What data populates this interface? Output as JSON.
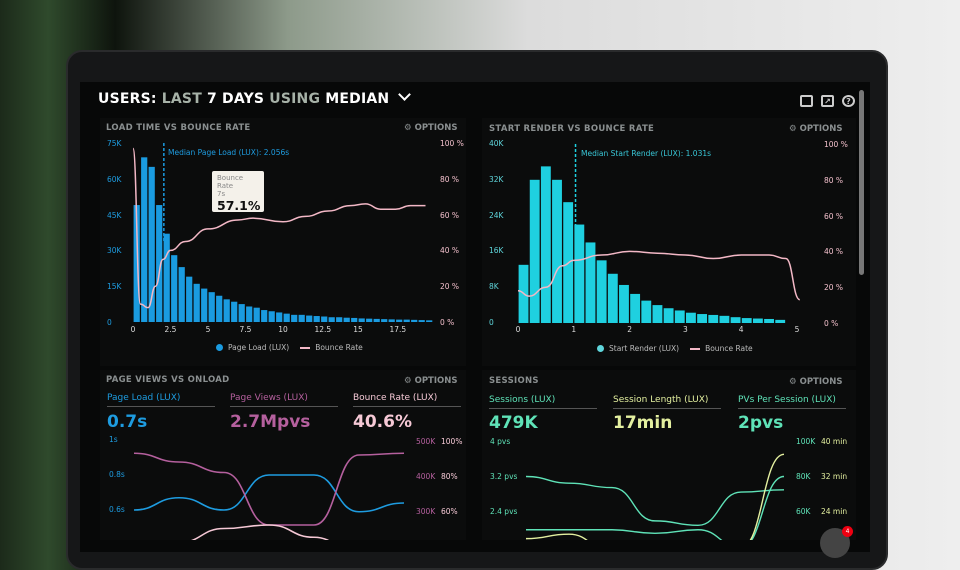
{
  "header": {
    "title_a": "USERS:",
    "title_b": "LAST",
    "title_c": "7 DAYS",
    "title_d": "USING",
    "title_e": "MEDIAN",
    "icons": [
      "monitor-icon",
      "share-icon",
      "help-icon"
    ]
  },
  "options_label": "OPTIONS",
  "panels": {
    "load": {
      "title": "LOAD TIME VS BOUNCE RATE",
      "median": "Median Page Load (LUX): 2.056s",
      "legend_bars": "Page Load (LUX)",
      "legend_line": "Bounce Rate",
      "tooltip": {
        "label": "Bounce Rate",
        "x": "7s",
        "value": "57.1%"
      },
      "yticks": [
        "75K",
        "60K",
        "45K",
        "30K",
        "15K",
        "0"
      ],
      "y2ticks": [
        "100 %",
        "80 %",
        "60 %",
        "40 %",
        "20 %",
        "0 %"
      ],
      "xticks": [
        "0",
        "2.5",
        "5",
        "7.5",
        "10",
        "12.5",
        "15",
        "17.5"
      ]
    },
    "render": {
      "title": "START RENDER VS BOUNCE RATE",
      "median": "Median Start Render (LUX): 1.031s",
      "legend_bars": "Start Render (LUX)",
      "legend_line": "Bounce Rate",
      "yticks": [
        "40K",
        "32K",
        "24K",
        "16K",
        "8K",
        "0"
      ],
      "y2ticks": [
        "100 %",
        "80 %",
        "60 %",
        "40 %",
        "20 %",
        "0 %"
      ],
      "xticks": [
        "0",
        "1",
        "2",
        "3",
        "4",
        "5"
      ]
    },
    "views": {
      "title": "PAGE VIEWS VS ONLOAD",
      "kpis": [
        {
          "label": "Page Load (LUX)",
          "value": "0.7s",
          "color": "#1e9ce0"
        },
        {
          "label": "Page Views (LUX)",
          "value": "2.7Mpvs",
          "color": "#b5609e"
        },
        {
          "label": "Bounce Rate (LUX)",
          "value": "40.6%",
          "color": "#f6c9d6"
        }
      ],
      "yticks": [
        "1s",
        "0.8s",
        "0.6s"
      ],
      "y2ticks": [
        "500K",
        "400K",
        "300K"
      ],
      "y3ticks": [
        "100%",
        "80%",
        "60%"
      ]
    },
    "sessions": {
      "title": "SESSIONS",
      "kpis": [
        {
          "label": "Sessions (LUX)",
          "value": "479K",
          "color": "#5fe3b8"
        },
        {
          "label": "Session Length (LUX)",
          "value": "17min",
          "color": "#e4f0a0"
        },
        {
          "label": "PVs Per Session (LUX)",
          "value": "2pvs",
          "color": "#5fe3b8"
        }
      ],
      "yticks": [
        "4 pvs",
        "3.2 pvs",
        "2.4 pvs"
      ],
      "y2ticks": [
        "100K",
        "80K",
        "60K"
      ],
      "y3ticks": [
        "40 min",
        "32 min",
        "24 min"
      ]
    }
  },
  "notification_count": "4",
  "chart_data": [
    {
      "type": "bar",
      "title": "LOAD TIME VS BOUNCE RATE",
      "xlabel": "",
      "ylabel": "",
      "xlim": [
        0,
        20
      ],
      "ylim": [
        0,
        75000
      ],
      "y2lim": [
        0,
        100
      ],
      "legend": "bottom",
      "series": [
        {
          "name": "Page Load (LUX)",
          "type": "bar",
          "bin_width": 0.5,
          "color": "#1a9be0",
          "values": [
            49,
            69,
            65,
            49,
            37,
            28,
            23,
            19,
            16,
            14,
            12.5,
            11,
            9.5,
            8.5,
            7.5,
            6.5,
            6,
            5,
            4.5,
            4,
            3.5,
            3,
            3,
            2.7,
            2.5,
            2.3,
            2,
            2,
            1.8,
            1.7,
            1.5,
            1.4,
            1.3,
            1.2,
            1.1,
            1,
            1,
            0.9,
            0.8,
            0.7
          ]
        },
        {
          "name": "Bounce Rate",
          "type": "line",
          "color": "#f3b8c6",
          "x": [
            0,
            0.5,
            1,
            1.5,
            2,
            2.5,
            3.5,
            5,
            7,
            8,
            10,
            11.5,
            13,
            14.5,
            15.5,
            16.5,
            17.5,
            18.5,
            19.5
          ],
          "y": [
            97,
            10,
            8,
            20,
            35,
            40,
            45,
            52,
            57,
            58,
            56,
            59,
            62,
            65,
            66,
            63,
            63,
            65,
            65
          ]
        }
      ],
      "median_x": 2.056,
      "value_unit": "K"
    },
    {
      "type": "bar",
      "title": "START RENDER VS BOUNCE RATE",
      "xlim": [
        0,
        5
      ],
      "ylim": [
        0,
        40000
      ],
      "y2lim": [
        0,
        100
      ],
      "legend": "bottom",
      "series": [
        {
          "name": "Start Render (LUX)",
          "type": "bar",
          "bin_width": 0.2,
          "color": "#1fd0e0",
          "values": [
            13,
            32,
            35,
            32,
            27,
            22,
            18,
            14,
            11,
            8.5,
            6.5,
            5,
            4,
            3.3,
            2.8,
            2.3,
            2,
            1.8,
            1.6,
            1.3,
            1.1,
            1,
            0.9,
            0.7
          ]
        },
        {
          "name": "Bounce Rate",
          "type": "line",
          "color": "#f3b8c6",
          "x": [
            0,
            0.2,
            0.5,
            0.8,
            1,
            1.5,
            2,
            2.5,
            3,
            3.5,
            4,
            4.5,
            4.8,
            5.05
          ],
          "y": [
            18,
            15,
            20,
            32,
            35,
            38,
            40,
            39,
            38,
            36,
            38,
            38,
            36,
            13
          ]
        }
      ],
      "median_x": 1.031,
      "value_unit": "K"
    },
    {
      "type": "line",
      "title": "PAGE VIEWS VS ONLOAD",
      "series": [
        {
          "name": "Page Load (LUX)",
          "axis": "s",
          "color": "#1e9ce0",
          "values": [
            0.6,
            0.67,
            0.6,
            0.8,
            0.8,
            0.59,
            0.64
          ]
        },
        {
          "name": "Page Views (LUX)",
          "axis": "K",
          "color": "#b5609e",
          "values": [
            465,
            440,
            410,
            260,
            260,
            460,
            465
          ]
        },
        {
          "name": "Bounce Rate (LUX)",
          "axis": "%",
          "color": "#f6c9d6",
          "values": [
            40,
            42,
            50,
            52,
            45,
            35,
            35
          ]
        }
      ]
    },
    {
      "type": "line",
      "title": "SESSIONS",
      "series": [
        {
          "name": "PVs Per Session (LUX)",
          "axis": "pvs",
          "color": "#5fe3b8",
          "values": [
            3.2,
            3.05,
            2.95,
            2.2,
            2.1,
            2.85,
            2.9
          ]
        },
        {
          "name": "Sessions (LUX)",
          "axis": "K",
          "color": "#5fe3b8",
          "values": [
            50,
            50,
            50,
            48,
            50,
            40,
            80
          ]
        },
        {
          "name": "Session Length (LUX)",
          "axis": "min",
          "color": "#e4f0a0",
          "values": [
            18,
            19,
            15,
            14,
            15,
            16,
            37
          ]
        }
      ]
    }
  ]
}
